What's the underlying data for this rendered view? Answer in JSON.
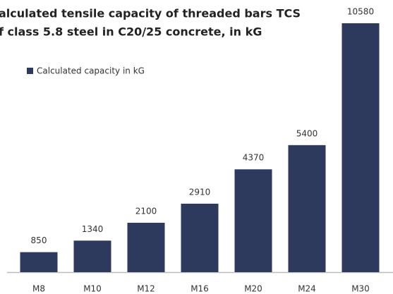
{
  "chart_data": {
    "type": "bar",
    "title": [
      "alculated tensile capacity of threaded bars TCS",
      "f class 5.8 steel in C20/25 concrete, in kG"
    ],
    "categories": [
      "M8",
      "M10",
      "M12",
      "M16",
      "M20",
      "M24",
      "M30"
    ],
    "series": [
      {
        "name": "Calculated capacity in kG",
        "color": "#2d3a5e",
        "values": [
          850,
          1340,
          2100,
          2910,
          4370,
          5400,
          10580
        ]
      }
    ]
  }
}
